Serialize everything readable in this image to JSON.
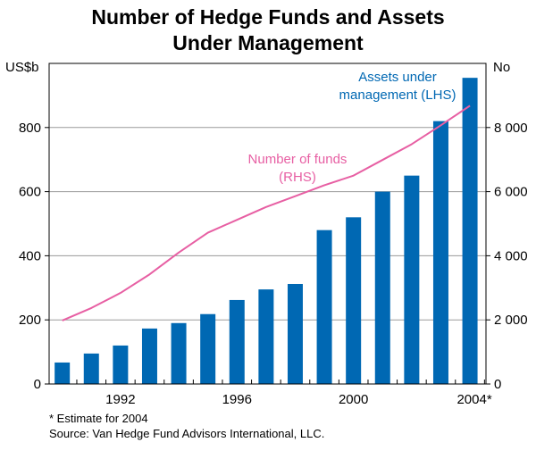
{
  "chart_data": {
    "type": "bar+line",
    "title_line1": "Number of Hedge Funds and Assets",
    "title_line2": "Under Management",
    "left_unit": "US$b",
    "right_unit": "No",
    "left_ylim": [
      0,
      1000
    ],
    "right_ylim": [
      0,
      10000
    ],
    "left_ticks": [
      "0",
      "200",
      "400",
      "600",
      "800"
    ],
    "left_tick_values": [
      0,
      200,
      400,
      600,
      800
    ],
    "right_ticks": [
      "0",
      "2 000",
      "4 000",
      "6 000",
      "8 000"
    ],
    "right_tick_values": [
      0,
      2000,
      4000,
      6000,
      8000
    ],
    "x_ticks": [
      "1992",
      "1996",
      "2000",
      "2004*"
    ],
    "x_tick_years": [
      1992,
      1996,
      2000,
      2004
    ],
    "years": [
      1990,
      1991,
      1992,
      1993,
      1994,
      1995,
      1996,
      1997,
      1998,
      1999,
      2000,
      2001,
      2002,
      2003,
      2004
    ],
    "series": [
      {
        "name": "Assets under management (LHS)",
        "label_line1": "Assets under",
        "label_line2": "management (LHS)",
        "type": "bar",
        "axis": "left",
        "color": "#0068b3",
        "values": [
          67,
          95,
          120,
          173,
          190,
          218,
          262,
          295,
          312,
          480,
          520,
          600,
          650,
          820,
          955
        ]
      },
      {
        "name": "Number of funds (RHS)",
        "label_line1": "Number of funds",
        "label_line2": "(RHS)",
        "type": "line",
        "axis": "right",
        "color": "#e75fa3",
        "values": [
          1980,
          2370,
          2840,
          3420,
          4100,
          4720,
          5120,
          5520,
          5860,
          6200,
          6500,
          6990,
          7480,
          8070,
          8680
        ]
      }
    ],
    "grid": true,
    "notes": {
      "footnote": "*  Estimate for 2004",
      "source": "Source: Van Hedge Fund Advisors International, LLC."
    }
  }
}
